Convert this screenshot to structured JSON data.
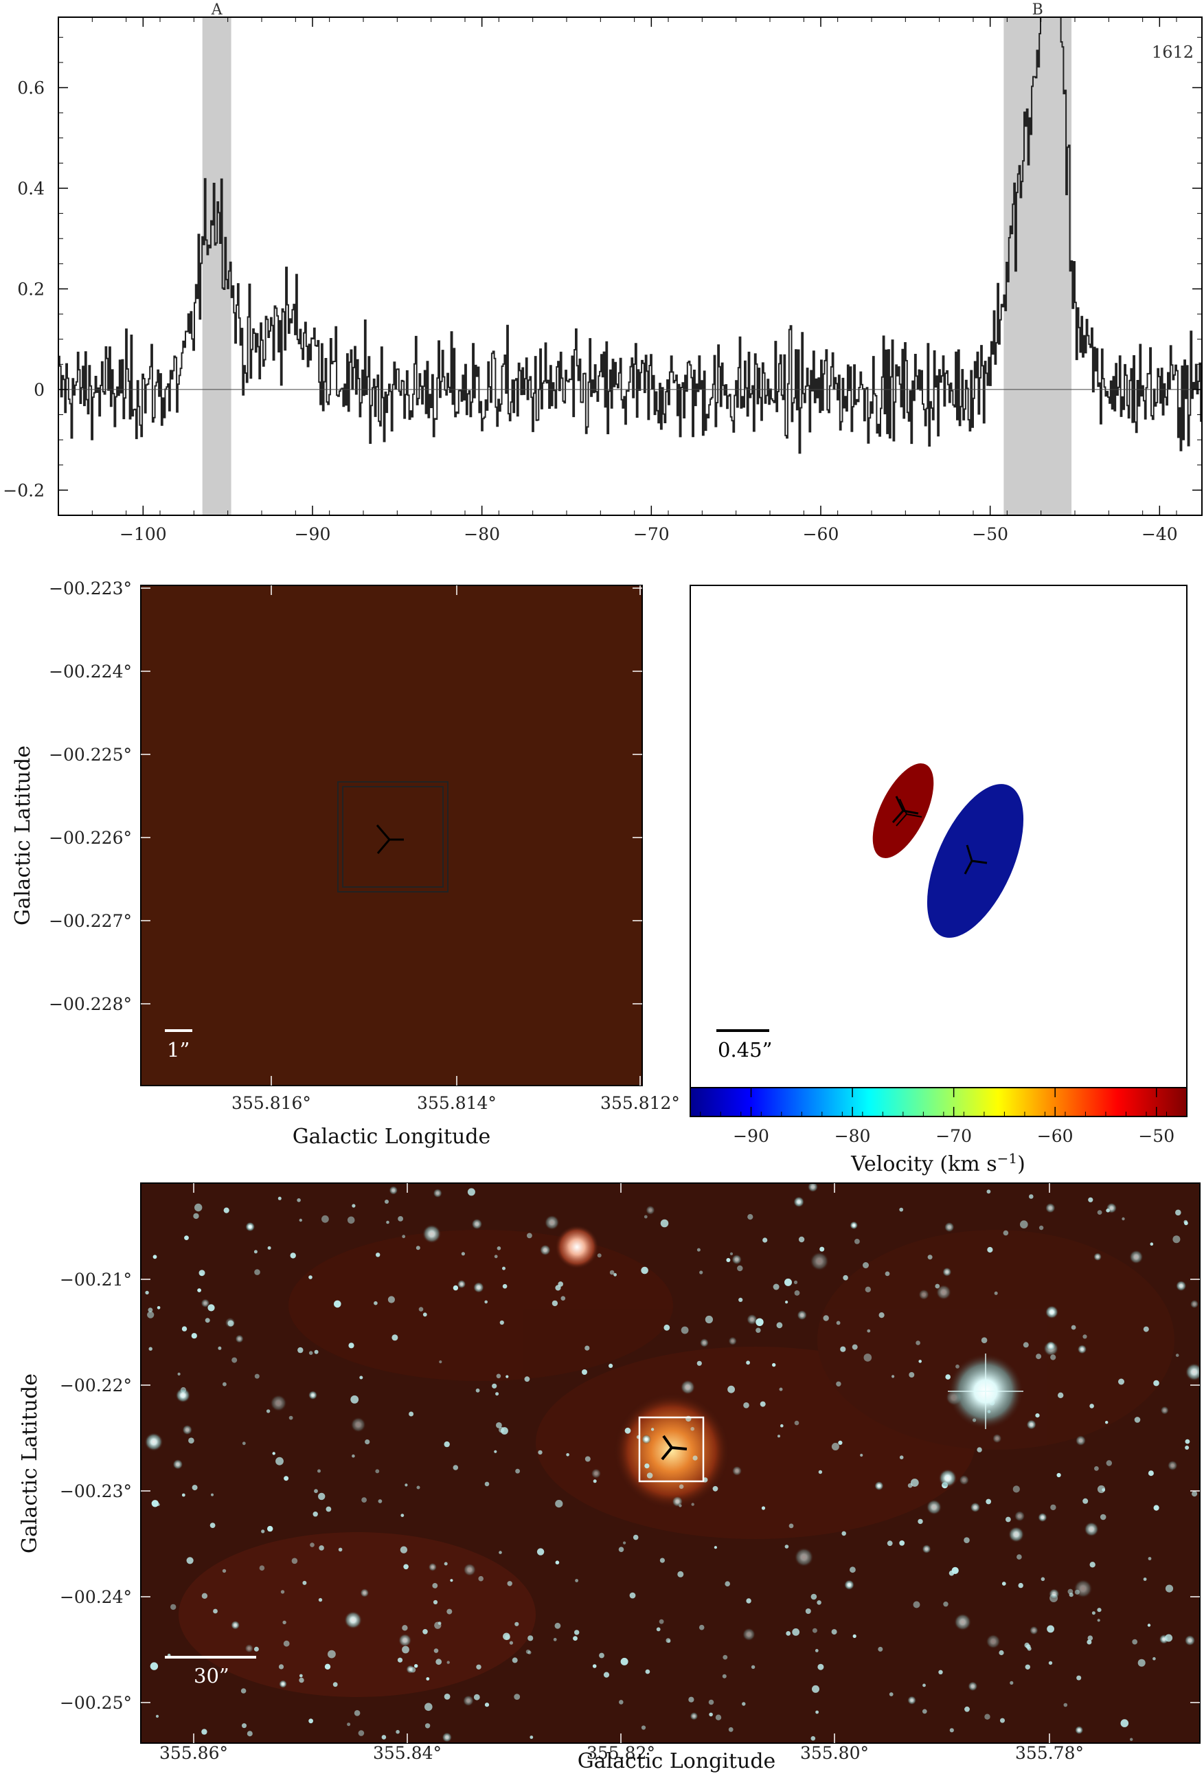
{
  "colors": {
    "frame": "#000000",
    "shade": "#cccccc",
    "spectrum": "#222222",
    "red_component": "#8b0000",
    "blue_component": "#0a1496",
    "image_background": "#3a130a",
    "star_color": "#bfeeee"
  },
  "chart_data": [
    {
      "type": "line",
      "annotation": "1612",
      "markers": [
        {
          "label": "A",
          "x_range": [
            -96.5,
            -94.8
          ]
        },
        {
          "label": "B",
          "x_range": [
            -49.2,
            -45.2
          ]
        }
      ],
      "xlim": [
        -105,
        -37.5
      ],
      "ylim": [
        -0.25,
        0.74
      ],
      "xticks": [
        "−100",
        "−90",
        "−80",
        "−70",
        "−60",
        "−50",
        "−40"
      ],
      "xtick_values": [
        -100,
        -90,
        -80,
        -70,
        -60,
        -50,
        -40
      ],
      "yticks": [
        "−0.2",
        "0",
        "0.2",
        "0.4",
        "0.6"
      ],
      "ytick_values": [
        -0.2,
        0,
        0.2,
        0.4,
        0.6
      ],
      "noise_level": 0.07,
      "features": [
        {
          "center": -95.8,
          "peak": 0.36,
          "width": 0.9
        },
        {
          "center": -91.5,
          "peak": 0.14,
          "width": 1.5
        },
        {
          "center": -47.2,
          "peak": 0.55,
          "width": 1.4
        },
        {
          "center": -46.3,
          "peak": 0.68,
          "width": 0.5
        }
      ]
    },
    {
      "type": "heatmap",
      "xlabel": "Galactic Longitude",
      "ylabel": "Galactic Latitude",
      "xticks": [
        "355.816°",
        "355.814°",
        "355.812°"
      ],
      "yticks": [
        "−00.223°",
        "−00.224°",
        "−00.225°",
        "−00.226°",
        "−00.227°",
        "−00.228°"
      ],
      "scale_bar": "1”",
      "source_center": {
        "l": 355.815,
        "b": -0.2261
      }
    },
    {
      "type": "scatter",
      "xlabel": "Velocity (km s",
      "xlabel_sup": "−1",
      "xlabel_end": ")",
      "scale_bar": "0.45”",
      "colorbar_ticks": [
        "−90",
        "−80",
        "−70",
        "−60",
        "−50"
      ],
      "colorbar_values": [
        -90,
        -80,
        -70,
        -60,
        -50
      ],
      "colorbar_range": [
        -96,
        -47
      ],
      "components": [
        {
          "velocity": -46.3,
          "color": "red"
        },
        {
          "velocity": -95.8,
          "color": "blue"
        }
      ]
    },
    {
      "type": "heatmap",
      "xlabel": "Galactic Longitude",
      "ylabel": "Galactic Latitude",
      "xticks": [
        "355.86°",
        "355.84°",
        "355.82°",
        "355.80°",
        "355.78°"
      ],
      "yticks": [
        "−00.21°",
        "−00.22°",
        "−00.23°",
        "−00.24°",
        "−00.25°"
      ],
      "scale_bar": "30”",
      "source_center": {
        "l": 355.815,
        "b": -0.2261
      }
    }
  ]
}
